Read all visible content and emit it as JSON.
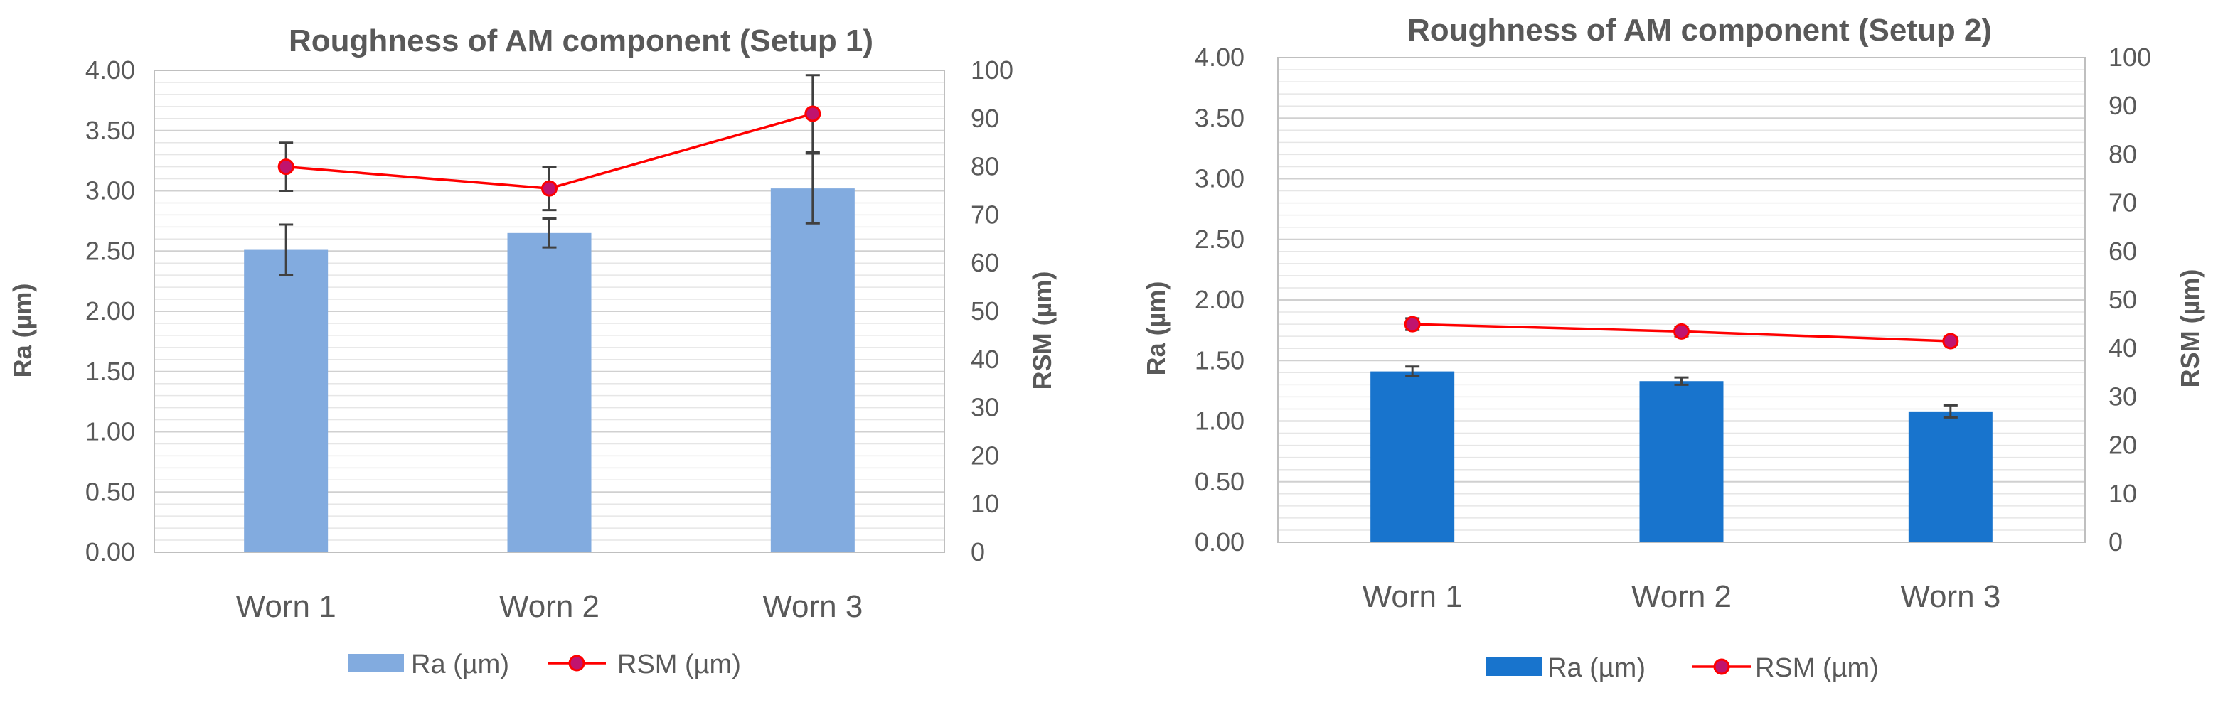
{
  "chart_data": [
    {
      "type": "bar",
      "title": "Roughness of AM component (Setup 1)",
      "categories": [
        "Worn 1",
        "Worn 2",
        "Worn 3"
      ],
      "ylabel": "Ra (µm)",
      "y2label": "RSM (µm)",
      "ylim": [
        0,
        4
      ],
      "y2lim": [
        0,
        100
      ],
      "yticks": [
        "0.00",
        "0.50",
        "1.00",
        "1.50",
        "2.00",
        "2.50",
        "3.00",
        "3.50",
        "4.00"
      ],
      "y2ticks": [
        "0",
        "10",
        "20",
        "30",
        "40",
        "50",
        "60",
        "70",
        "80",
        "90",
        "100"
      ],
      "grid": true,
      "legend_position": "bottom",
      "series": [
        {
          "name": "Ra (µm)",
          "type": "bar",
          "axis": "left",
          "color": "#82ABDF",
          "values": [
            2.51,
            2.65,
            3.02
          ],
          "errors": [
            0.21,
            0.12,
            0.29
          ]
        },
        {
          "name": "RSM (µm)",
          "type": "line",
          "axis": "right",
          "color": "#FF0000",
          "marker_color": "#C0146E",
          "values": [
            80,
            75.5,
            91
          ],
          "errors": [
            5,
            4.5,
            8
          ]
        }
      ]
    },
    {
      "type": "bar",
      "title": "Roughness of AM component (Setup 2)",
      "categories": [
        "Worn 1",
        "Worn 2",
        "Worn 3"
      ],
      "ylabel": "Ra (µm)",
      "y2label": "RSM (µm)",
      "ylim": [
        0,
        4
      ],
      "y2lim": [
        0,
        100
      ],
      "yticks": [
        "0.00",
        "0.50",
        "1.00",
        "1.50",
        "2.00",
        "2.50",
        "3.00",
        "3.50",
        "4.00"
      ],
      "y2ticks": [
        "0",
        "10",
        "20",
        "30",
        "40",
        "50",
        "60",
        "70",
        "80",
        "90",
        "100"
      ],
      "grid": true,
      "legend_position": "bottom",
      "series": [
        {
          "name": "Ra (µm)",
          "type": "bar",
          "axis": "left",
          "color": "#1874CD",
          "values": [
            1.41,
            1.33,
            1.08
          ],
          "errors": [
            0.04,
            0.03,
            0.05
          ]
        },
        {
          "name": "RSM (µm)",
          "type": "line",
          "axis": "right",
          "color": "#FF0000",
          "marker_color": "#C0146E",
          "values": [
            45,
            43.5,
            41.5
          ],
          "errors": [
            1.2,
            1.0,
            0.8
          ]
        }
      ]
    }
  ]
}
